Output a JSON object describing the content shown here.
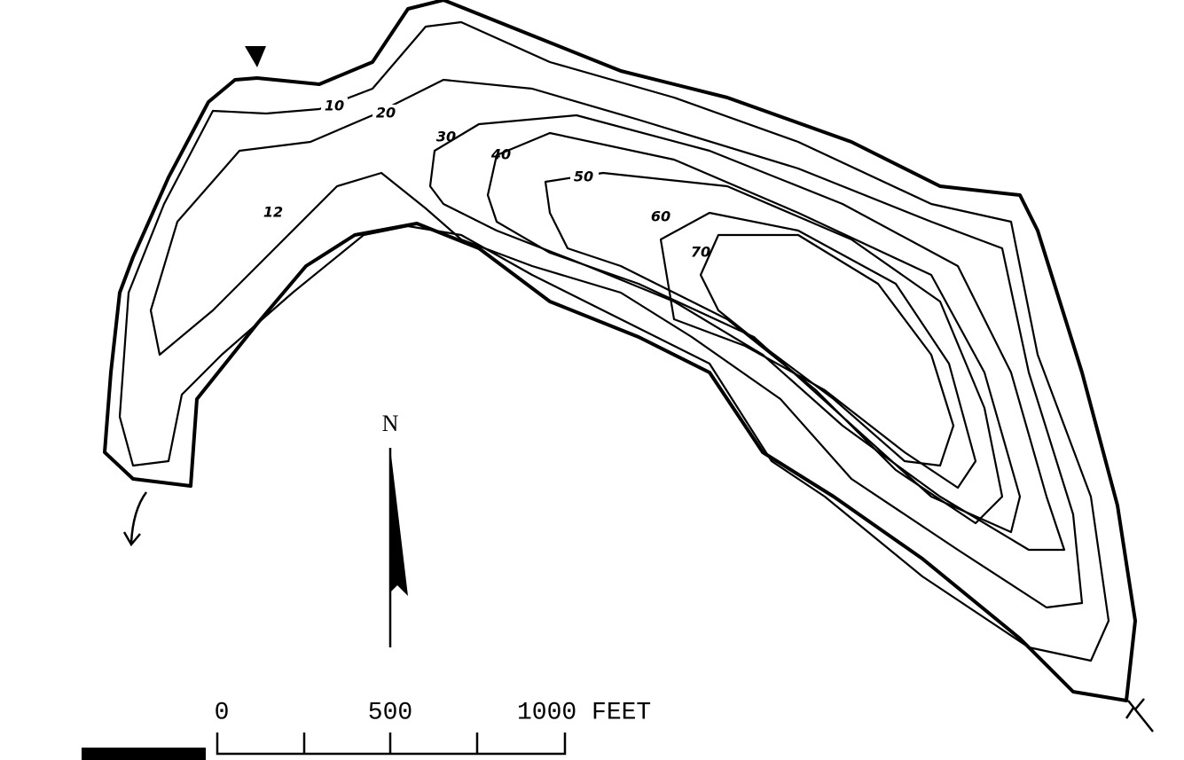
{
  "contour_labels": [
    "10",
    "20",
    "30",
    "40",
    "50",
    "60",
    "70",
    "12"
  ],
  "north_label": "N",
  "scale": {
    "labels": [
      "0",
      "500",
      "1000 FEET"
    ]
  }
}
